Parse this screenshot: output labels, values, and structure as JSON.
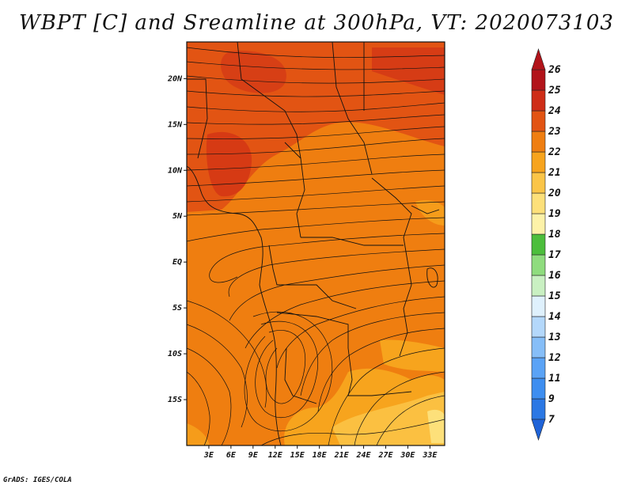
{
  "title": "WBPT [C] and Sreamline at 300hPa, VT: 2020073103",
  "credit": "GrADS: IGES/COLA",
  "chart_data": {
    "type": "heatmap",
    "variable": "Wet-bulb potential temperature (WBPT)",
    "unit": "C",
    "level": "300hPa",
    "valid_time": "2020073103",
    "overlay": "streamlines",
    "lon_range": [
      0,
      35
    ],
    "lat_range": [
      -20,
      24
    ],
    "lon_ticks": [
      "3E",
      "6E",
      "9E",
      "12E",
      "15E",
      "18E",
      "21E",
      "24E",
      "27E",
      "30E",
      "33E"
    ],
    "lat_ticks": [
      "20N",
      "15N",
      "10N",
      "5N",
      "EQ",
      "5S",
      "10S",
      "15S"
    ],
    "colorbar": {
      "levels": [
        "7",
        "9",
        "11",
        "12",
        "13",
        "14",
        "15",
        "16",
        "17",
        "18",
        "19",
        "20",
        "21",
        "22",
        "23",
        "24",
        "25",
        "26"
      ],
      "colors": [
        "#1f63d8",
        "#2b78e4",
        "#3d8ef0",
        "#5aa3f6",
        "#86bef8",
        "#b4d8fb",
        "#dff1fd",
        "#c9f0c2",
        "#8fdc7e",
        "#4cbe3c",
        "#fdf2a8",
        "#fde07a",
        "#fbc548",
        "#f7a41d",
        "#ef7e10",
        "#e25413",
        "#ce2d17",
        "#b2141a"
      ]
    },
    "field_summary": "Mostly 22-23 C orange across the domain; 23-24 C red-orange bands over the northern Sahel (about 12-22N) and in the north-east; 20-22 C yellow-orange pockets in the south-east (about 10-20S, 18-35E)."
  }
}
